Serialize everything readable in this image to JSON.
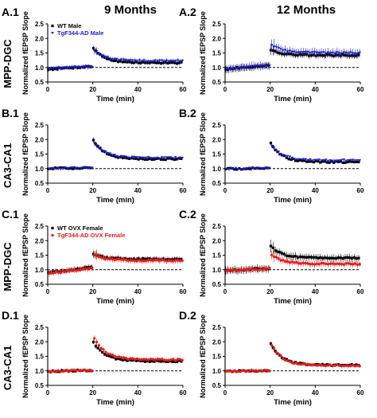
{
  "figure": {
    "column_titles": [
      "9 Months",
      "12 Months"
    ],
    "row_labels": [
      "MPP-DGC",
      "CA3-CA1",
      "MPP-DGC",
      "CA3-CA1"
    ],
    "legends": [
      {
        "entries": [
          {
            "label": "WT Male",
            "color": "#000000",
            "marker": "square"
          },
          {
            "label": "TgF344-AD Male",
            "color": "#2020c8",
            "marker": "triangle-down"
          }
        ]
      },
      {
        "entries": [
          {
            "label": "WT OVX Female",
            "color": "#000000",
            "marker": "square"
          },
          {
            "label": "TgF344-AD OVX Female",
            "color": "#e02020",
            "marker": "circle"
          }
        ]
      }
    ]
  },
  "chart_data": [
    {
      "type": "scatter",
      "panel": "A.1",
      "xlabel": "Time (min)",
      "ylabel": "Normalized fEPSP Slope",
      "xlim": [
        0,
        60
      ],
      "ylim": [
        0.5,
        2.5
      ],
      "xticks": [
        0,
        20,
        40,
        60
      ],
      "yticks": [
        0.5,
        1.0,
        1.5,
        2.0,
        2.5
      ],
      "reference_line": 1.0,
      "series": [
        {
          "name": "WT Male",
          "color": "#000000",
          "marker": "square",
          "baseline": [
            0.94,
            1.04
          ],
          "peak": 1.72,
          "end": 1.16,
          "error": 0.06
        },
        {
          "name": "TgF344-AD Male",
          "color": "#2020c8",
          "marker": "triangle-down",
          "baseline": [
            0.96,
            1.03
          ],
          "peak": 1.65,
          "end": 1.22,
          "error": 0.07
        }
      ]
    },
    {
      "type": "scatter",
      "panel": "A.2",
      "xlabel": "Time (min)",
      "ylabel": "Normalized fEPSP Slope",
      "xlim": [
        0,
        60
      ],
      "ylim": [
        0.5,
        2.5
      ],
      "xticks": [
        0,
        20,
        40,
        60
      ],
      "yticks": [
        0.5,
        1.0,
        1.5,
        2.0,
        2.5
      ],
      "reference_line": 1.0,
      "series": [
        {
          "name": "WT Male",
          "color": "#000000",
          "marker": "square",
          "baseline": [
            0.94,
            1.08
          ],
          "peak": 1.62,
          "end": 1.42,
          "error": 0.1
        },
        {
          "name": "TgF344-AD Male",
          "color": "#2020c8",
          "marker": "triangle-down",
          "baseline": [
            0.95,
            1.07
          ],
          "peak": 1.82,
          "end": 1.5,
          "error": 0.14
        }
      ]
    },
    {
      "type": "scatter",
      "panel": "B.1",
      "xlabel": "Time (min)",
      "ylabel": "Normalized fEPSP Slope",
      "xlim": [
        0,
        60
      ],
      "ylim": [
        0.5,
        2.5
      ],
      "xticks": [
        0,
        20,
        40,
        60
      ],
      "yticks": [
        0.5,
        1.0,
        1.5,
        2.0,
        2.5
      ],
      "reference_line": 1.0,
      "series": [
        {
          "name": "WT Male",
          "color": "#000000",
          "marker": "square",
          "baseline": [
            1.0,
            1.02
          ],
          "peak": 2.05,
          "end": 1.33,
          "error": 0.05
        },
        {
          "name": "TgF344-AD Male",
          "color": "#2020c8",
          "marker": "triangle-down",
          "baseline": [
            1.0,
            1.03
          ],
          "peak": 1.95,
          "end": 1.36,
          "error": 0.05
        }
      ]
    },
    {
      "type": "scatter",
      "panel": "B.2",
      "xlabel": "Time (min)",
      "ylabel": "Normalized fEPSP Slope",
      "xlim": [
        0,
        60
      ],
      "ylim": [
        0.5,
        2.5
      ],
      "xticks": [
        0,
        20,
        40,
        60
      ],
      "yticks": [
        0.5,
        1.0,
        1.5,
        2.0,
        2.5
      ],
      "reference_line": 1.0,
      "series": [
        {
          "name": "WT Male",
          "color": "#000000",
          "marker": "square",
          "baseline": [
            0.99,
            1.01
          ],
          "peak": 1.95,
          "end": 1.22,
          "error": 0.04
        },
        {
          "name": "TgF344-AD Male",
          "color": "#2020c8",
          "marker": "triangle-down",
          "baseline": [
            0.99,
            1.01
          ],
          "peak": 1.85,
          "end": 1.28,
          "error": 0.04
        }
      ]
    },
    {
      "type": "scatter",
      "panel": "C.1",
      "xlabel": "Time (min)",
      "ylabel": "Normalized fEPSP Slope",
      "xlim": [
        0,
        60
      ],
      "ylim": [
        0.5,
        2.5
      ],
      "xticks": [
        0,
        20,
        40,
        60
      ],
      "yticks": [
        0.5,
        1.0,
        1.5,
        2.0,
        2.5
      ],
      "reference_line": 1.0,
      "series": [
        {
          "name": "WT OVX Female",
          "color": "#000000",
          "marker": "square",
          "baseline": [
            0.9,
            1.08
          ],
          "peak": 1.55,
          "end": 1.36,
          "error": 0.08
        },
        {
          "name": "TgF344-AD OVX Female",
          "color": "#e02020",
          "marker": "circle",
          "baseline": [
            0.88,
            1.06
          ],
          "peak": 1.55,
          "end": 1.32,
          "error": 0.1
        }
      ]
    },
    {
      "type": "scatter",
      "panel": "C.2",
      "xlabel": "Time (min)",
      "ylabel": "Normalized fEPSP Slope",
      "xlim": [
        0,
        60
      ],
      "ylim": [
        0.5,
        2.5
      ],
      "xticks": [
        0,
        20,
        40,
        60
      ],
      "yticks": [
        0.5,
        1.0,
        1.5,
        2.0,
        2.5
      ],
      "reference_line": 1.0,
      "series": [
        {
          "name": "WT OVX Female",
          "color": "#000000",
          "marker": "square",
          "baseline": [
            0.97,
            1.05
          ],
          "peak": 1.85,
          "end": 1.4,
          "error": 0.12
        },
        {
          "name": "TgF344-AD OVX Female",
          "color": "#e02020",
          "marker": "circle",
          "baseline": [
            0.96,
            1.04
          ],
          "peak": 1.55,
          "end": 1.2,
          "error": 0.1
        }
      ]
    },
    {
      "type": "scatter",
      "panel": "D.1",
      "xlabel": "Time (min)",
      "ylabel": "Normalized fEPSP Slope",
      "xlim": [
        0,
        60
      ],
      "ylim": [
        0.5,
        2.5
      ],
      "xticks": [
        0,
        20,
        40,
        60
      ],
      "yticks": [
        0.5,
        1.0,
        1.5,
        2.0,
        2.5
      ],
      "reference_line": 1.0,
      "series": [
        {
          "name": "WT OVX Female",
          "color": "#000000",
          "marker": "square",
          "baseline": [
            0.98,
            1.02
          ],
          "peak": 2.05,
          "end": 1.33,
          "error": 0.05
        },
        {
          "name": "TgF344-AD OVX Female",
          "color": "#e02020",
          "marker": "circle",
          "baseline": [
            0.98,
            1.02
          ],
          "peak": 2.2,
          "end": 1.38,
          "error": 0.06
        }
      ]
    },
    {
      "type": "scatter",
      "panel": "D.2",
      "xlabel": "Time (min)",
      "ylabel": "Normalized fEPSP Slope",
      "xlim": [
        0,
        60
      ],
      "ylim": [
        0.5,
        2.5
      ],
      "xticks": [
        0,
        20,
        40,
        60
      ],
      "yticks": [
        0.5,
        1.0,
        1.5,
        2.0,
        2.5
      ],
      "reference_line": 1.0,
      "series": [
        {
          "name": "WT OVX Female",
          "color": "#000000",
          "marker": "square",
          "baseline": [
            0.99,
            1.01
          ],
          "peak": 2.0,
          "end": 1.2,
          "error": 0.04
        },
        {
          "name": "TgF344-AD OVX Female",
          "color": "#e02020",
          "marker": "circle",
          "baseline": [
            0.99,
            1.01
          ],
          "peak": 1.95,
          "end": 1.18,
          "error": 0.05
        }
      ]
    }
  ]
}
